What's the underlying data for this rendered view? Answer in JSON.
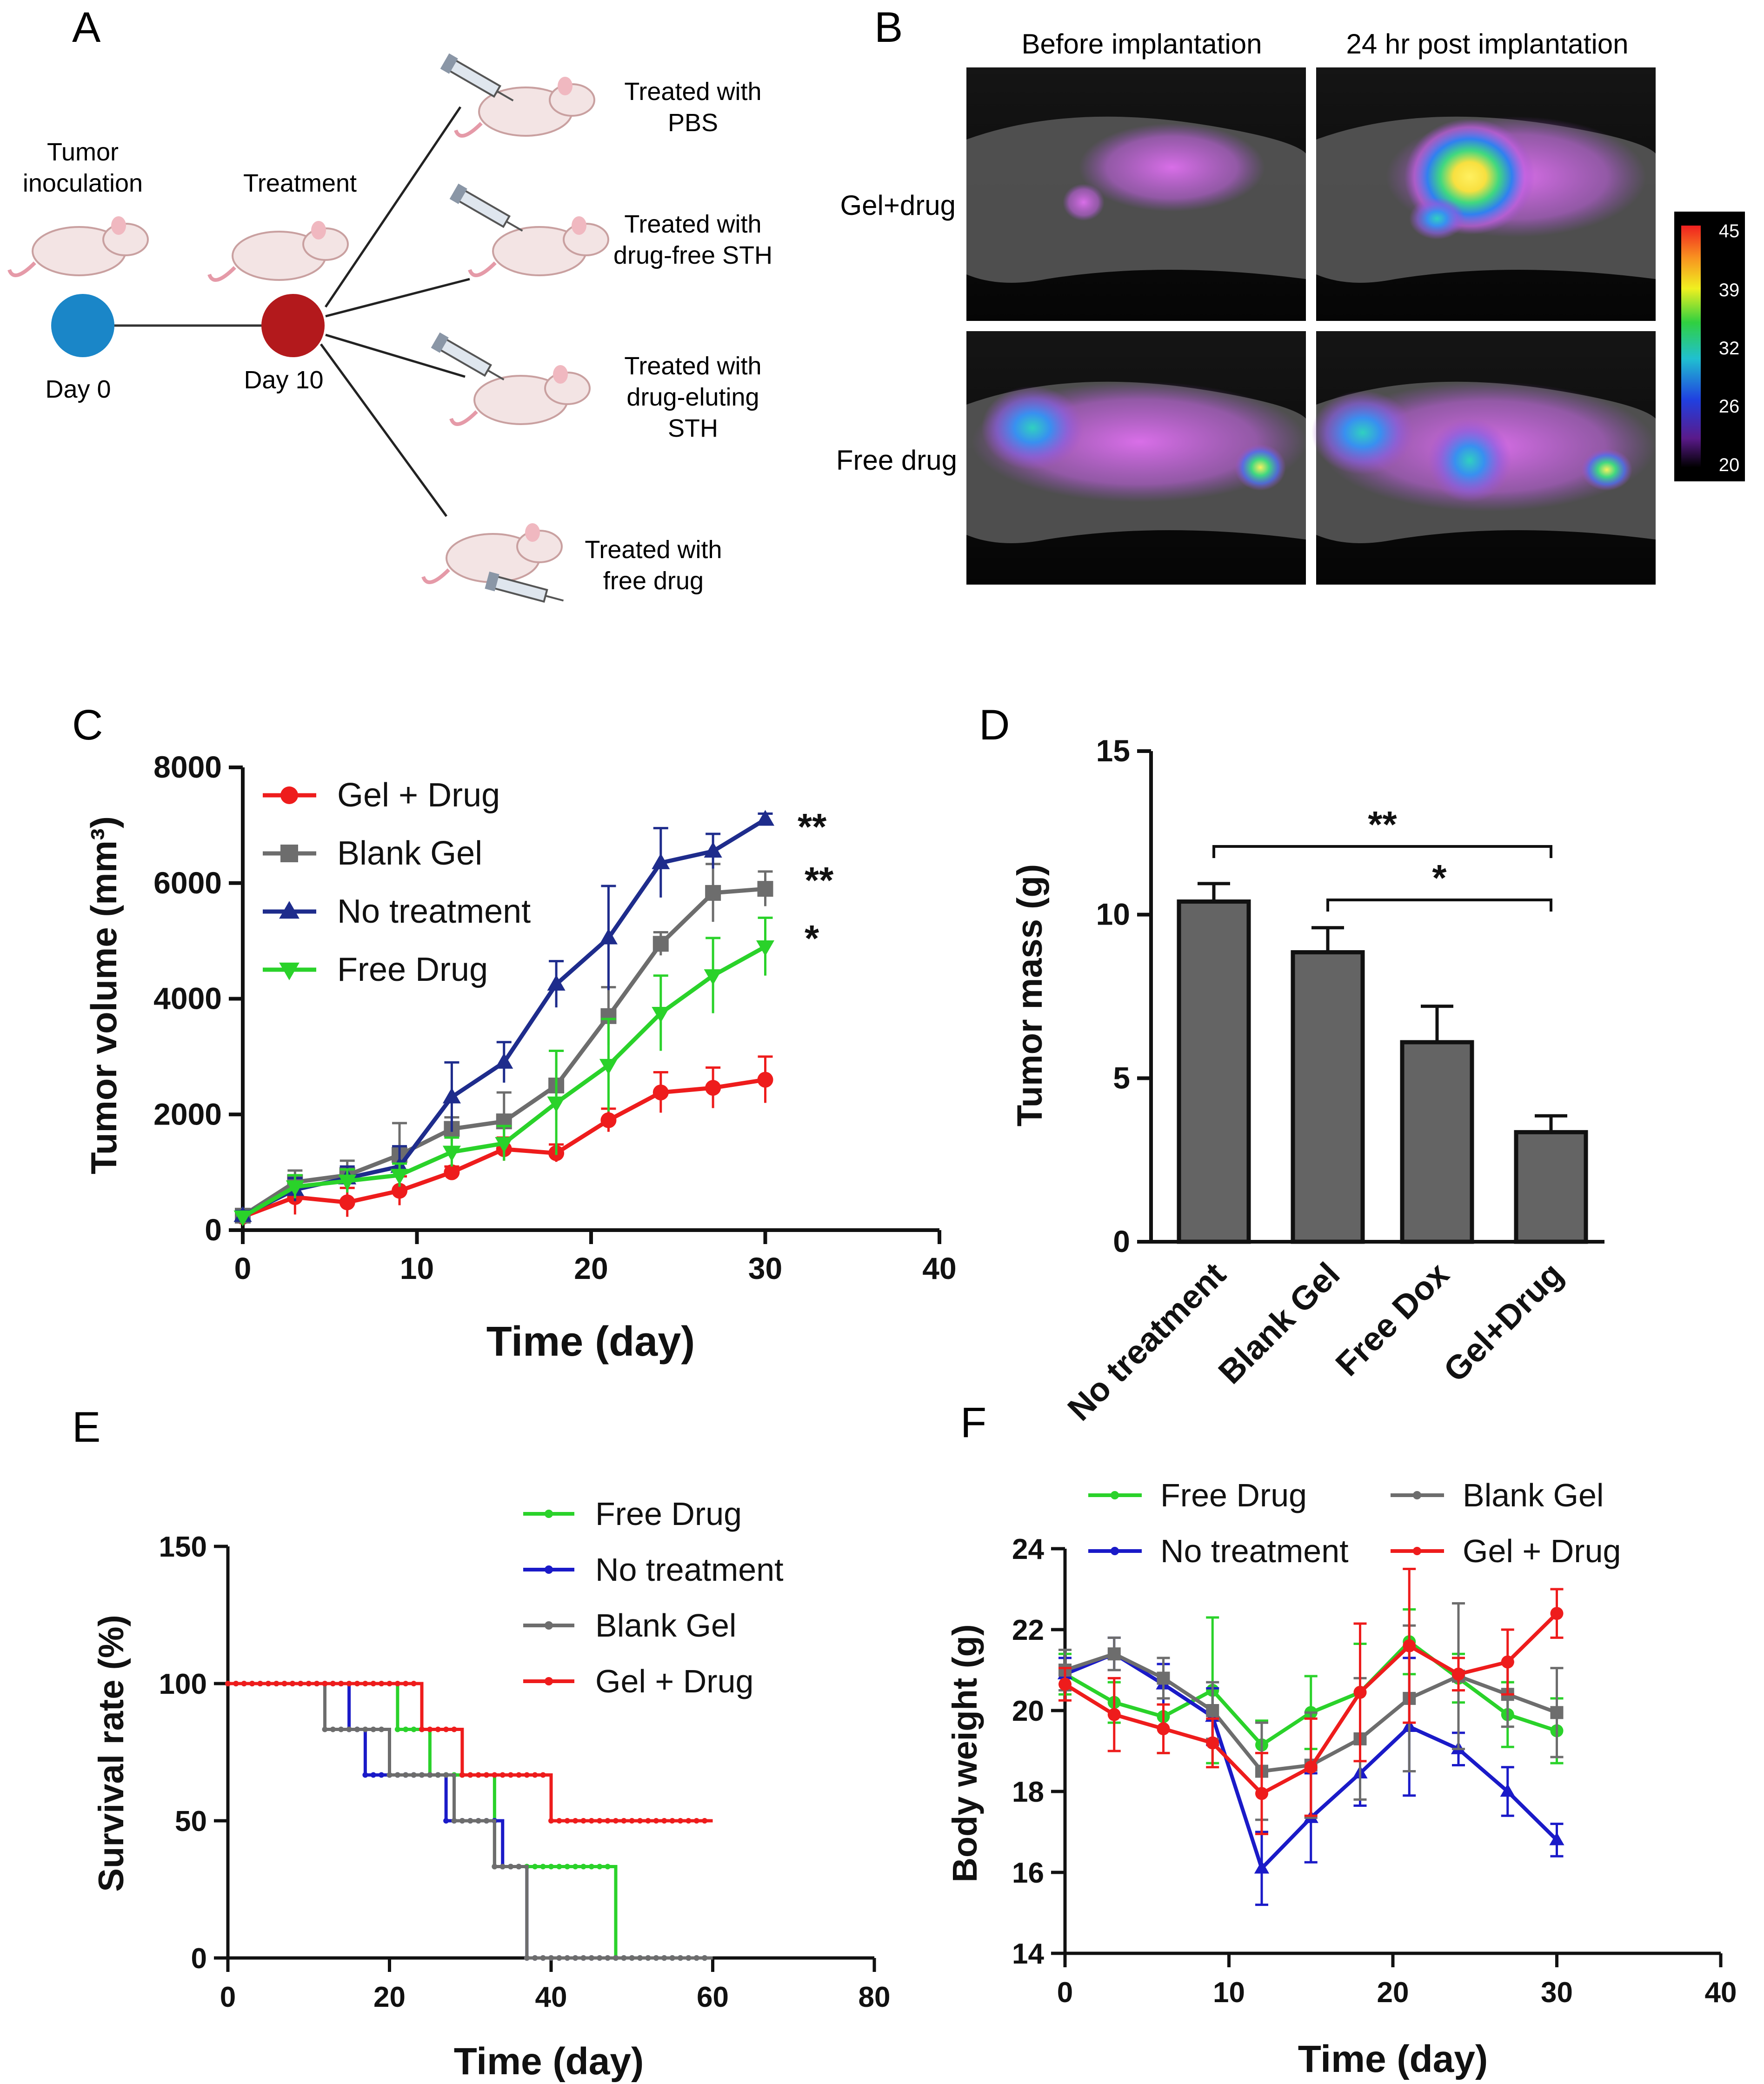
{
  "panels": {
    "A": {
      "letter": "A",
      "tumor_inoculation_line1": "Tumor",
      "tumor_inoculation_line2": "inoculation",
      "treatment": "Treatment",
      "day0": "Day 0",
      "day10": "Day 10",
      "groups": [
        {
          "lines": [
            "Treated with",
            "PBS"
          ]
        },
        {
          "lines": [
            "Treated with",
            "drug-free STH"
          ]
        },
        {
          "lines": [
            "Treated with",
            "drug-eluting",
            "STH"
          ]
        },
        {
          "lines": [
            "Treated with",
            "free drug"
          ]
        }
      ],
      "colors": {
        "day0": "#1a86c8",
        "day10": "#b3191c"
      }
    },
    "B": {
      "letter": "B",
      "col_before": "Before implantation",
      "col_after": "24 hr post implantation",
      "row_gel": "Gel+drug",
      "row_free": "Free drug",
      "colorbar_ticks": [
        "45",
        "39",
        "32",
        "26",
        "20"
      ]
    },
    "C": {
      "letter": "C"
    },
    "D": {
      "letter": "D"
    },
    "E": {
      "letter": "E"
    },
    "F": {
      "letter": "F"
    }
  },
  "chart_data": [
    {
      "id": "C",
      "type": "line",
      "xlabel": "Time (day)",
      "ylabel": "Tumor volume (mm³)",
      "xlim": [
        0,
        40
      ],
      "ylim": [
        0,
        8000
      ],
      "xticks": [
        "0",
        "10",
        "20",
        "30",
        "40"
      ],
      "yticks": [
        "0",
        "2000",
        "4000",
        "6000",
        "8000"
      ],
      "x": [
        0,
        3,
        6,
        9,
        12,
        15,
        18,
        21,
        24,
        27,
        30
      ],
      "series": [
        {
          "name": "Gel + Drug",
          "color": "#ee1c1c",
          "marker": "circle",
          "values": [
            230,
            570,
            480,
            680,
            1000,
            1400,
            1330,
            1900,
            2380,
            2460,
            2600
          ],
          "errors": [
            100,
            300,
            250,
            250,
            100,
            200,
            150,
            200,
            350,
            350,
            400
          ]
        },
        {
          "name": "Blank Gel",
          "color": "#6d6d6d",
          "marker": "square",
          "values": [
            250,
            830,
            950,
            1300,
            1750,
            1880,
            2500,
            3700,
            4950,
            5830,
            5900
          ],
          "errors": [
            80,
            200,
            250,
            550,
            200,
            500,
            600,
            500,
            200,
            500,
            300
          ]
        },
        {
          "name": "No treatment",
          "color": "#1e2c8c",
          "marker": "triangle-up",
          "values": [
            250,
            700,
            900,
            1100,
            2300,
            2900,
            4250,
            5050,
            6350,
            6550,
            7100
          ],
          "errors": [
            80,
            200,
            200,
            350,
            600,
            350,
            400,
            900,
            600,
            300,
            100
          ]
        },
        {
          "name": "Free Drug",
          "color": "#2ad22a",
          "marker": "triangle-down",
          "values": [
            230,
            750,
            850,
            950,
            1350,
            1500,
            2200,
            2850,
            3750,
            4400,
            4900
          ],
          "errors": [
            80,
            200,
            200,
            200,
            250,
            300,
            900,
            800,
            650,
            650,
            500
          ]
        }
      ],
      "significance": [
        "**",
        "**",
        "*"
      ]
    },
    {
      "id": "D",
      "type": "bar",
      "ylabel": "Tumor mass (g)",
      "ylim": [
        0,
        15
      ],
      "yticks": [
        "0",
        "5",
        "10",
        "15"
      ],
      "categories": [
        "No treatment",
        "Blank Gel",
        "Free Dox",
        "Gel+Drug"
      ],
      "values": [
        10.4,
        8.85,
        6.1,
        3.35
      ],
      "errors": [
        0.55,
        0.75,
        1.1,
        0.5
      ],
      "bar_color": "#646464",
      "significance": [
        {
          "from": "No treatment",
          "to": "Gel+Drug",
          "label": "**"
        },
        {
          "from": "Blank Gel",
          "to": "Gel+Drug",
          "label": "*"
        }
      ]
    },
    {
      "id": "E",
      "type": "line",
      "subtype": "kaplan-meier",
      "xlabel": "Time (day)",
      "ylabel": "Survival rate (%)",
      "xlim": [
        0,
        80
      ],
      "ylim": [
        0,
        150
      ],
      "xticks": [
        "0",
        "20",
        "40",
        "60",
        "80"
      ],
      "yticks": [
        "0",
        "50",
        "100",
        "150"
      ],
      "series": [
        {
          "name": "Free Drug",
          "color": "#2ad22a",
          "steps": [
            [
              0,
              100
            ],
            [
              21,
              83.3
            ],
            [
              25,
              66.7
            ],
            [
              33,
              33.3
            ],
            [
              48,
              0
            ],
            [
              60,
              0
            ]
          ]
        },
        {
          "name": "No treatment",
          "color": "#1a1ac8",
          "steps": [
            [
              0,
              100
            ],
            [
              15,
              83.3
            ],
            [
              17,
              66.7
            ],
            [
              27,
              50
            ],
            [
              34,
              33.3
            ],
            [
              37,
              0
            ],
            [
              60,
              0
            ]
          ]
        },
        {
          "name": "Blank Gel",
          "color": "#6d6d6d",
          "steps": [
            [
              0,
              100
            ],
            [
              12,
              83.3
            ],
            [
              20,
              66.7
            ],
            [
              28,
              50
            ],
            [
              33,
              33.3
            ],
            [
              37,
              0
            ],
            [
              60,
              0
            ]
          ]
        },
        {
          "name": "Gel + Drug",
          "color": "#ee1c1c",
          "steps": [
            [
              0,
              100
            ],
            [
              24,
              83.3
            ],
            [
              29,
              66.7
            ],
            [
              40,
              50
            ],
            [
              60,
              50
            ]
          ]
        }
      ]
    },
    {
      "id": "F",
      "type": "line",
      "xlabel": "Time (day)",
      "ylabel": "Body weight (g)",
      "xlim": [
        0,
        40
      ],
      "ylim": [
        14,
        24
      ],
      "xticks": [
        "0",
        "10",
        "20",
        "30",
        "40"
      ],
      "yticks": [
        "14",
        "16",
        "18",
        "20",
        "22",
        "24"
      ],
      "x": [
        0,
        3,
        6,
        9,
        12,
        15,
        18,
        21,
        24,
        27,
        30
      ],
      "series": [
        {
          "name": "Free Drug",
          "color": "#2ad22a",
          "marker": "circle",
          "values": [
            20.9,
            20.2,
            19.85,
            20.5,
            19.15,
            19.95,
            20.45,
            21.7,
            20.8,
            19.9,
            19.5
          ],
          "errors": [
            0.5,
            0.5,
            0.9,
            1.8,
            0.6,
            0.9,
            1.2,
            0.8,
            0.6,
            0.8,
            0.8
          ]
        },
        {
          "name": "No treatment",
          "color": "#1a1ac8",
          "marker": "triangle-up",
          "values": [
            20.9,
            21.4,
            20.65,
            19.85,
            16.1,
            17.35,
            18.45,
            19.6,
            19.05,
            18.0,
            16.8
          ],
          "errors": [
            0.4,
            0.4,
            0.5,
            0.7,
            0.9,
            1.1,
            0.8,
            1.7,
            0.4,
            0.6,
            0.4
          ]
        },
        {
          "name": "Blank Gel",
          "color": "#6d6d6d",
          "marker": "square",
          "values": [
            21.0,
            21.4,
            20.8,
            20.0,
            18.5,
            18.65,
            19.3,
            20.3,
            20.85,
            20.4,
            19.95
          ],
          "errors": [
            0.5,
            0.4,
            0.5,
            0.7,
            1.2,
            1.3,
            1.5,
            1.8,
            1.8,
            0.8,
            1.1
          ]
        },
        {
          "name": "Gel + Drug",
          "color": "#ee1c1c",
          "marker": "circle",
          "values": [
            20.65,
            19.9,
            19.55,
            19.2,
            17.95,
            18.6,
            20.45,
            21.6,
            20.9,
            21.2,
            22.4
          ],
          "errors": [
            0.4,
            0.9,
            0.6,
            0.6,
            1.0,
            1.2,
            1.7,
            1.9,
            0.4,
            0.8,
            0.6
          ]
        }
      ]
    }
  ]
}
